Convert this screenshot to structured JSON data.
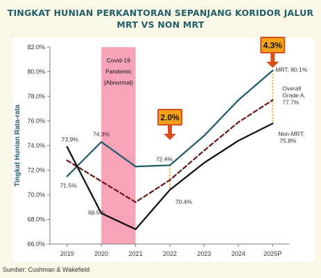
{
  "title_line1": "TINGKAT HUNIAN PERKANTORAN SEPANJANG KORIDOR JALUR",
  "title_line2": "MRT VS NON MRT",
  "source": "Sumber: Cushman & Wakefield",
  "chart_data": {
    "type": "line",
    "title": "TINGKAT HUNIAN PERKANTORAN SEPANJANG KORIDOR JALUR MRT VS NON MRT",
    "ylabel": "Tingkat Hunian Rata-rata",
    "xlabel": "",
    "categories": [
      "2019",
      "2020",
      "2021",
      "2022",
      "2023",
      "2024",
      "2025P"
    ],
    "ylim": [
      66.0,
      82.0
    ],
    "yticks": [
      "66.0%",
      "68.0%",
      "70.0%",
      "72.0%",
      "74.0%",
      "76.0%",
      "78.0%",
      "80.0%",
      "82.0%"
    ],
    "grid": false,
    "legend": "inline end labels",
    "series": [
      {
        "key": "mrt",
        "values": [
          71.5,
          74.3,
          72.3,
          72.4,
          74.8,
          77.7,
          80.1
        ],
        "color": "#1f5f6b",
        "style": "solid",
        "end_label_lines": [
          "MRT, 80.1%"
        ]
      },
      {
        "key": "overall",
        "values": [
          72.8,
          71.1,
          69.4,
          71.2,
          73.6,
          75.9,
          77.7
        ],
        "color": "#6b1a1a",
        "style": "dashed",
        "end_label_lines": [
          "Overall",
          "Grade A,",
          "77.7%"
        ]
      },
      {
        "key": "nonmrt",
        "values": [
          73.9,
          68.5,
          67.2,
          70.4,
          72.6,
          74.4,
          75.8
        ],
        "color": "#111111",
        "style": "solid",
        "end_label_lines": [
          "Non-MRT,",
          "75.8%"
        ]
      }
    ],
    "data_labels": [
      {
        "text": "73.9%",
        "series": "nonmrt",
        "index": 0
      },
      {
        "text": "71.5%",
        "series": "mrt",
        "index": 0
      },
      {
        "text": "74.3%",
        "series": "mrt",
        "index": 1
      },
      {
        "text": "68.5%",
        "series": "nonmrt",
        "index": 1
      },
      {
        "text": "72.4%",
        "series": "mrt",
        "index": 3
      },
      {
        "text": "70.4%",
        "series": "nonmrt",
        "index": 3
      }
    ],
    "shaded_period": {
      "from": "2020",
      "to": "2021",
      "lines": [
        "Covid-19",
        "Pandemic",
        "(Abnormal)"
      ],
      "color": "#f7a3b8"
    },
    "gap_markers": [
      {
        "category": "2022",
        "label": "2.0%"
      },
      {
        "category": "2025P",
        "label": "4.3%"
      }
    ],
    "accent_colors": {
      "callout_fill": "#f5a21b",
      "callout_border": "#d9501a",
      "arrow": "#d9501a",
      "gap_line": "#f5a21b"
    }
  }
}
